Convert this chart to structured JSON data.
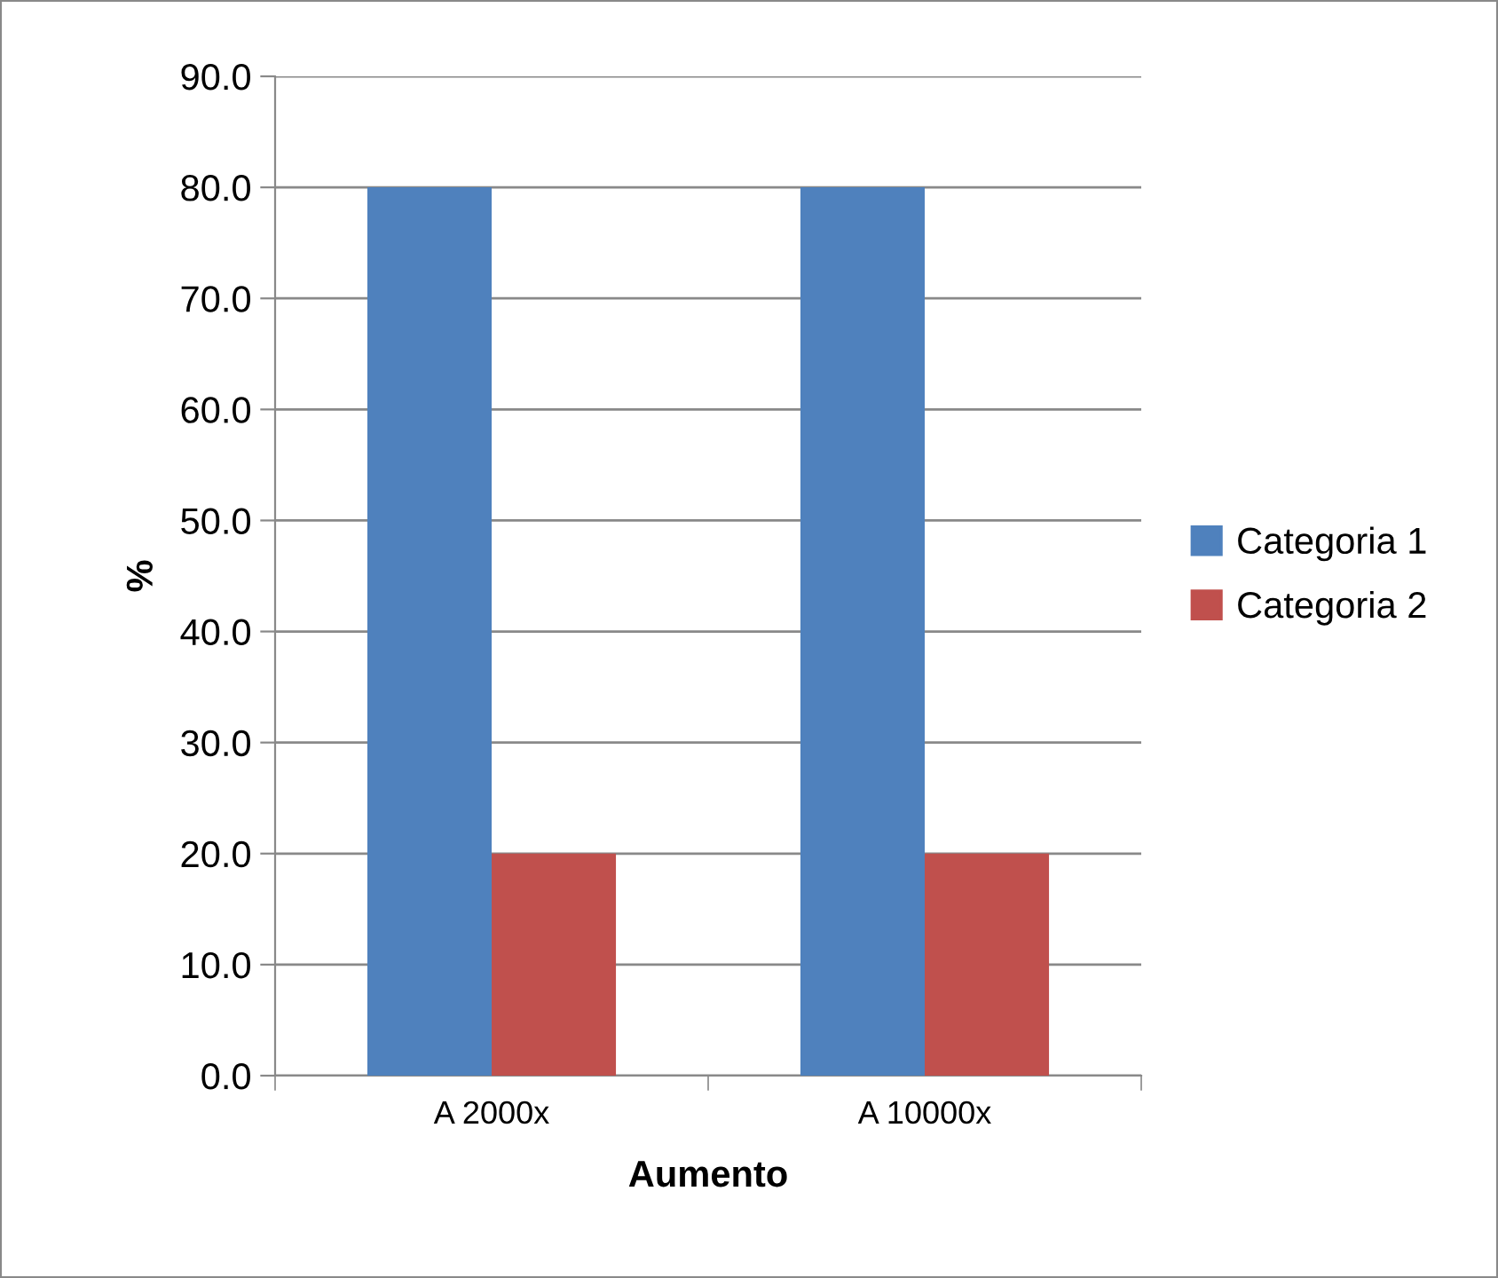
{
  "chart_data": {
    "type": "bar",
    "xlabel": "Aumento",
    "ylabel": "%",
    "categories": [
      "A 2000x",
      "A 10000x"
    ],
    "series": [
      {
        "name": "Categoria 1",
        "color": "#4f81bd",
        "values": [
          80.0,
          80.0
        ]
      },
      {
        "name": "Categoria 2",
        "color": "#c0504d",
        "values": [
          20.0,
          20.0
        ]
      }
    ],
    "ylim": [
      0,
      90
    ],
    "yticks": [
      {
        "value": 0,
        "label": "0.0"
      },
      {
        "value": 10,
        "label": "10.0"
      },
      {
        "value": 20,
        "label": "20.0"
      },
      {
        "value": 30,
        "label": "30.0"
      },
      {
        "value": 40,
        "label": "40.0"
      },
      {
        "value": 50,
        "label": "50.0"
      },
      {
        "value": 60,
        "label": "60.0"
      },
      {
        "value": 70,
        "label": "70.0"
      },
      {
        "value": 80,
        "label": "80.0"
      },
      {
        "value": 90,
        "label": "90.0"
      }
    ],
    "grid": "y",
    "legend": "right"
  }
}
